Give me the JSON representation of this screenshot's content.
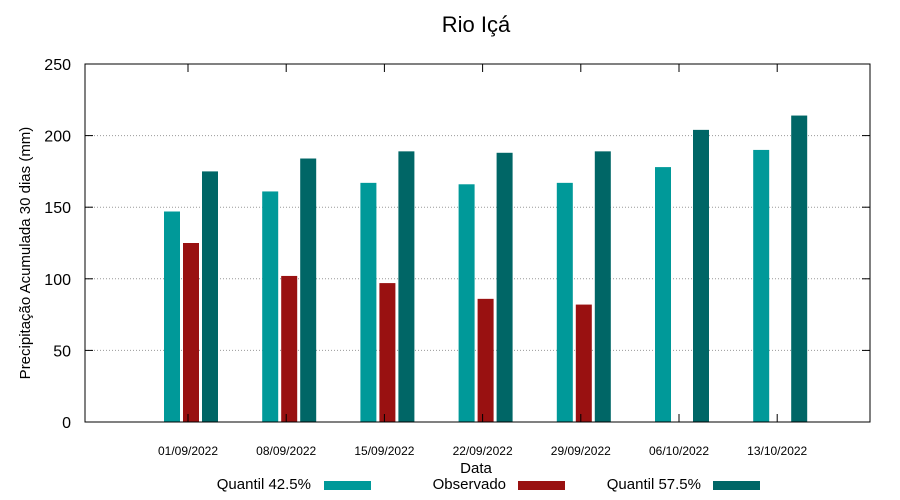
{
  "chart_data": {
    "type": "bar",
    "title": "Rio Içá",
    "xlabel": "Data",
    "ylabel": "Precipitação Acumulada 30 dias (mm)",
    "ylim": [
      0,
      250
    ],
    "yticks": [
      0,
      50,
      100,
      150,
      200,
      250
    ],
    "grid": true,
    "legend_position": "bottom",
    "categories": [
      "01/09/2022",
      "08/09/2022",
      "15/09/2022",
      "22/09/2022",
      "29/09/2022",
      "06/10/2022",
      "13/10/2022"
    ],
    "series": [
      {
        "name": "Quantil 42.5%",
        "color": "#009999",
        "values": [
          147,
          161,
          167,
          166,
          167,
          178,
          190
        ]
      },
      {
        "name": "Observado",
        "color": "#991111",
        "values": [
          125,
          102,
          97,
          86,
          82,
          null,
          null
        ]
      },
      {
        "name": "Quantil 57.5%",
        "color": "#006666",
        "values": [
          175,
          184,
          189,
          188,
          189,
          204,
          214
        ]
      }
    ]
  }
}
